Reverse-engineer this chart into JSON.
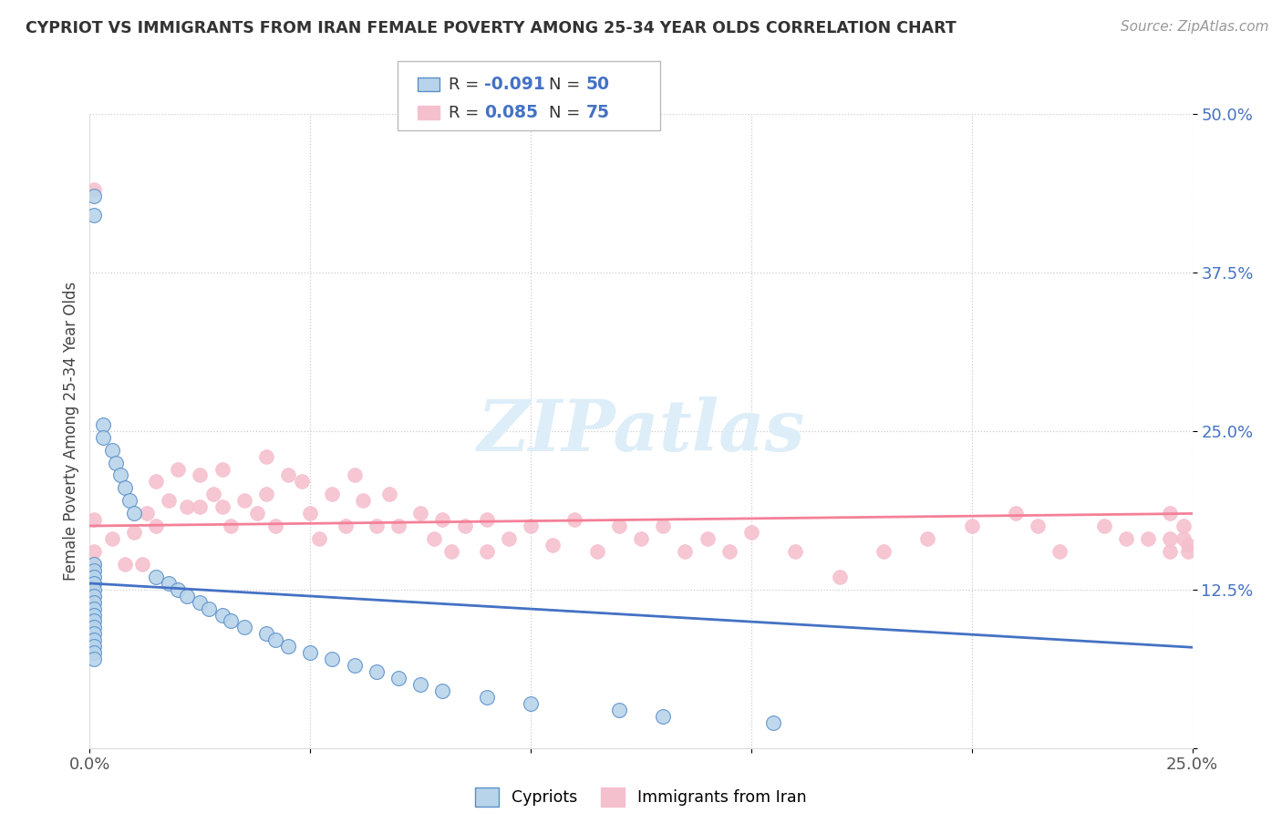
{
  "title": "CYPRIOT VS IMMIGRANTS FROM IRAN FEMALE POVERTY AMONG 25-34 YEAR OLDS CORRELATION CHART",
  "source": "Source: ZipAtlas.com",
  "ylabel": "Female Poverty Among 25-34 Year Olds",
  "xlim": [
    0.0,
    0.25
  ],
  "ylim": [
    0.0,
    0.5
  ],
  "yticks": [
    0.0,
    0.125,
    0.25,
    0.375,
    0.5
  ],
  "ytick_labels": [
    "",
    "12.5%",
    "25.0%",
    "37.5%",
    "50.0%"
  ],
  "xtick_vals": [
    0.0,
    0.05,
    0.1,
    0.15,
    0.2,
    0.25
  ],
  "xtick_labels": [
    "0.0%",
    "",
    "",
    "",
    "",
    "25.0%"
  ],
  "r1": -0.091,
  "r2": 0.085,
  "n1": 50,
  "n2": 75,
  "color_cypriot_fill": "#b8d4ea",
  "color_cypriot_edge": "#5b8fc9",
  "color_iran_fill": "#f5c0ce",
  "color_iran_edge": "#f5c0ce",
  "color_line1": "#4472c4",
  "color_line2": "#f48098",
  "cypriot_x": [
    0.001,
    0.001,
    0.001,
    0.001,
    0.001,
    0.001,
    0.001,
    0.001,
    0.001,
    0.001,
    0.001,
    0.001,
    0.001,
    0.001,
    0.001,
    0.001,
    0.001,
    0.001,
    0.003,
    0.003,
    0.005,
    0.006,
    0.007,
    0.008,
    0.009,
    0.01,
    0.015,
    0.018,
    0.02,
    0.022,
    0.025,
    0.027,
    0.03,
    0.032,
    0.035,
    0.04,
    0.042,
    0.045,
    0.05,
    0.055,
    0.06,
    0.065,
    0.07,
    0.075,
    0.08,
    0.09,
    0.1,
    0.12,
    0.13,
    0.155
  ],
  "cypriot_y": [
    0.435,
    0.42,
    0.145,
    0.14,
    0.135,
    0.13,
    0.125,
    0.12,
    0.115,
    0.11,
    0.105,
    0.1,
    0.095,
    0.09,
    0.085,
    0.08,
    0.075,
    0.07,
    0.255,
    0.245,
    0.235,
    0.225,
    0.215,
    0.205,
    0.195,
    0.185,
    0.135,
    0.13,
    0.125,
    0.12,
    0.115,
    0.11,
    0.105,
    0.1,
    0.095,
    0.09,
    0.085,
    0.08,
    0.075,
    0.07,
    0.065,
    0.06,
    0.055,
    0.05,
    0.045,
    0.04,
    0.035,
    0.03,
    0.025,
    0.02
  ],
  "iran_x": [
    0.001,
    0.001,
    0.001,
    0.001,
    0.001,
    0.001,
    0.005,
    0.008,
    0.01,
    0.012,
    0.013,
    0.015,
    0.015,
    0.018,
    0.02,
    0.022,
    0.025,
    0.025,
    0.028,
    0.03,
    0.03,
    0.032,
    0.035,
    0.038,
    0.04,
    0.04,
    0.042,
    0.045,
    0.048,
    0.05,
    0.052,
    0.055,
    0.058,
    0.06,
    0.062,
    0.065,
    0.068,
    0.07,
    0.075,
    0.078,
    0.08,
    0.082,
    0.085,
    0.09,
    0.09,
    0.095,
    0.1,
    0.105,
    0.11,
    0.115,
    0.12,
    0.125,
    0.13,
    0.135,
    0.14,
    0.145,
    0.15,
    0.16,
    0.17,
    0.18,
    0.19,
    0.2,
    0.21,
    0.215,
    0.22,
    0.23,
    0.235,
    0.24,
    0.245,
    0.245,
    0.245,
    0.248,
    0.248,
    0.249,
    0.249
  ],
  "iran_y": [
    0.44,
    0.18,
    0.155,
    0.145,
    0.13,
    0.12,
    0.165,
    0.145,
    0.17,
    0.145,
    0.185,
    0.21,
    0.175,
    0.195,
    0.22,
    0.19,
    0.215,
    0.19,
    0.2,
    0.22,
    0.19,
    0.175,
    0.195,
    0.185,
    0.23,
    0.2,
    0.175,
    0.215,
    0.21,
    0.185,
    0.165,
    0.2,
    0.175,
    0.215,
    0.195,
    0.175,
    0.2,
    0.175,
    0.185,
    0.165,
    0.18,
    0.155,
    0.175,
    0.155,
    0.18,
    0.165,
    0.175,
    0.16,
    0.18,
    0.155,
    0.175,
    0.165,
    0.175,
    0.155,
    0.165,
    0.155,
    0.17,
    0.155,
    0.135,
    0.155,
    0.165,
    0.175,
    0.185,
    0.175,
    0.155,
    0.175,
    0.165,
    0.165,
    0.155,
    0.165,
    0.185,
    0.175,
    0.165,
    0.16,
    0.155
  ]
}
